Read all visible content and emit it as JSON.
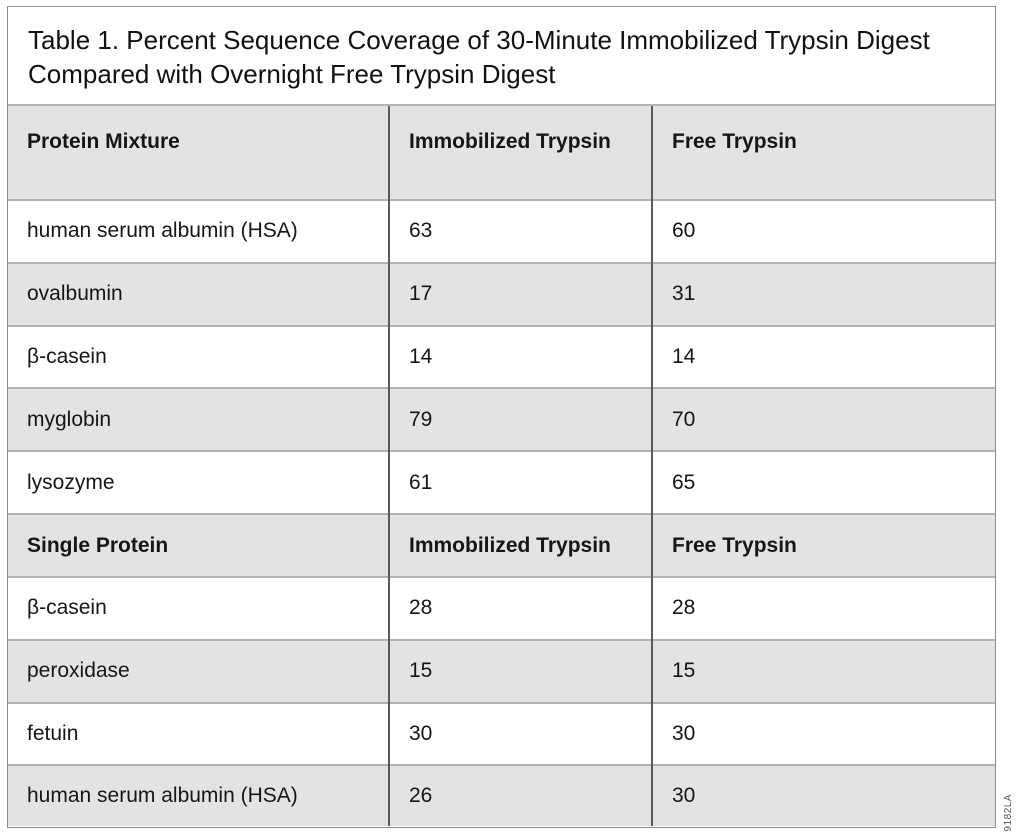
{
  "title": "Table 1. Percent Sequence Coverage of 30-Minute Immobilized Trypsin Digest Compared with Overnight Free Trypsin Digest",
  "table": {
    "sections": [
      {
        "header": [
          "Protein Mixture",
          "Immobilized Trypsin",
          "Free Trypsin"
        ],
        "rows": [
          [
            "human serum albumin (HSA)",
            "63",
            "60"
          ],
          [
            "ovalbumin",
            "17",
            "31"
          ],
          [
            "β-casein",
            "14",
            "14"
          ],
          [
            "myglobin",
            "79",
            "70"
          ],
          [
            "lysozyme",
            "61",
            "65"
          ]
        ]
      },
      {
        "header": [
          "Single Protein",
          "Immobilized Trypsin",
          "Free Trypsin"
        ],
        "rows": [
          [
            "β-casein",
            "28",
            "28"
          ],
          [
            "peroxidase",
            "15",
            "15"
          ],
          [
            "fetuin",
            "30",
            "30"
          ],
          [
            "human serum albumin (HSA)",
            "26",
            "30"
          ]
        ]
      }
    ]
  },
  "side_label": "9182LA",
  "colors": {
    "row_shade": "#e3e3e3",
    "divider_horizontal": "#b2b2b2",
    "divider_vertical": "#5a5a5a",
    "outer_border": "#8c8c8c",
    "text": "#161616",
    "side_label_color": "#595959"
  }
}
